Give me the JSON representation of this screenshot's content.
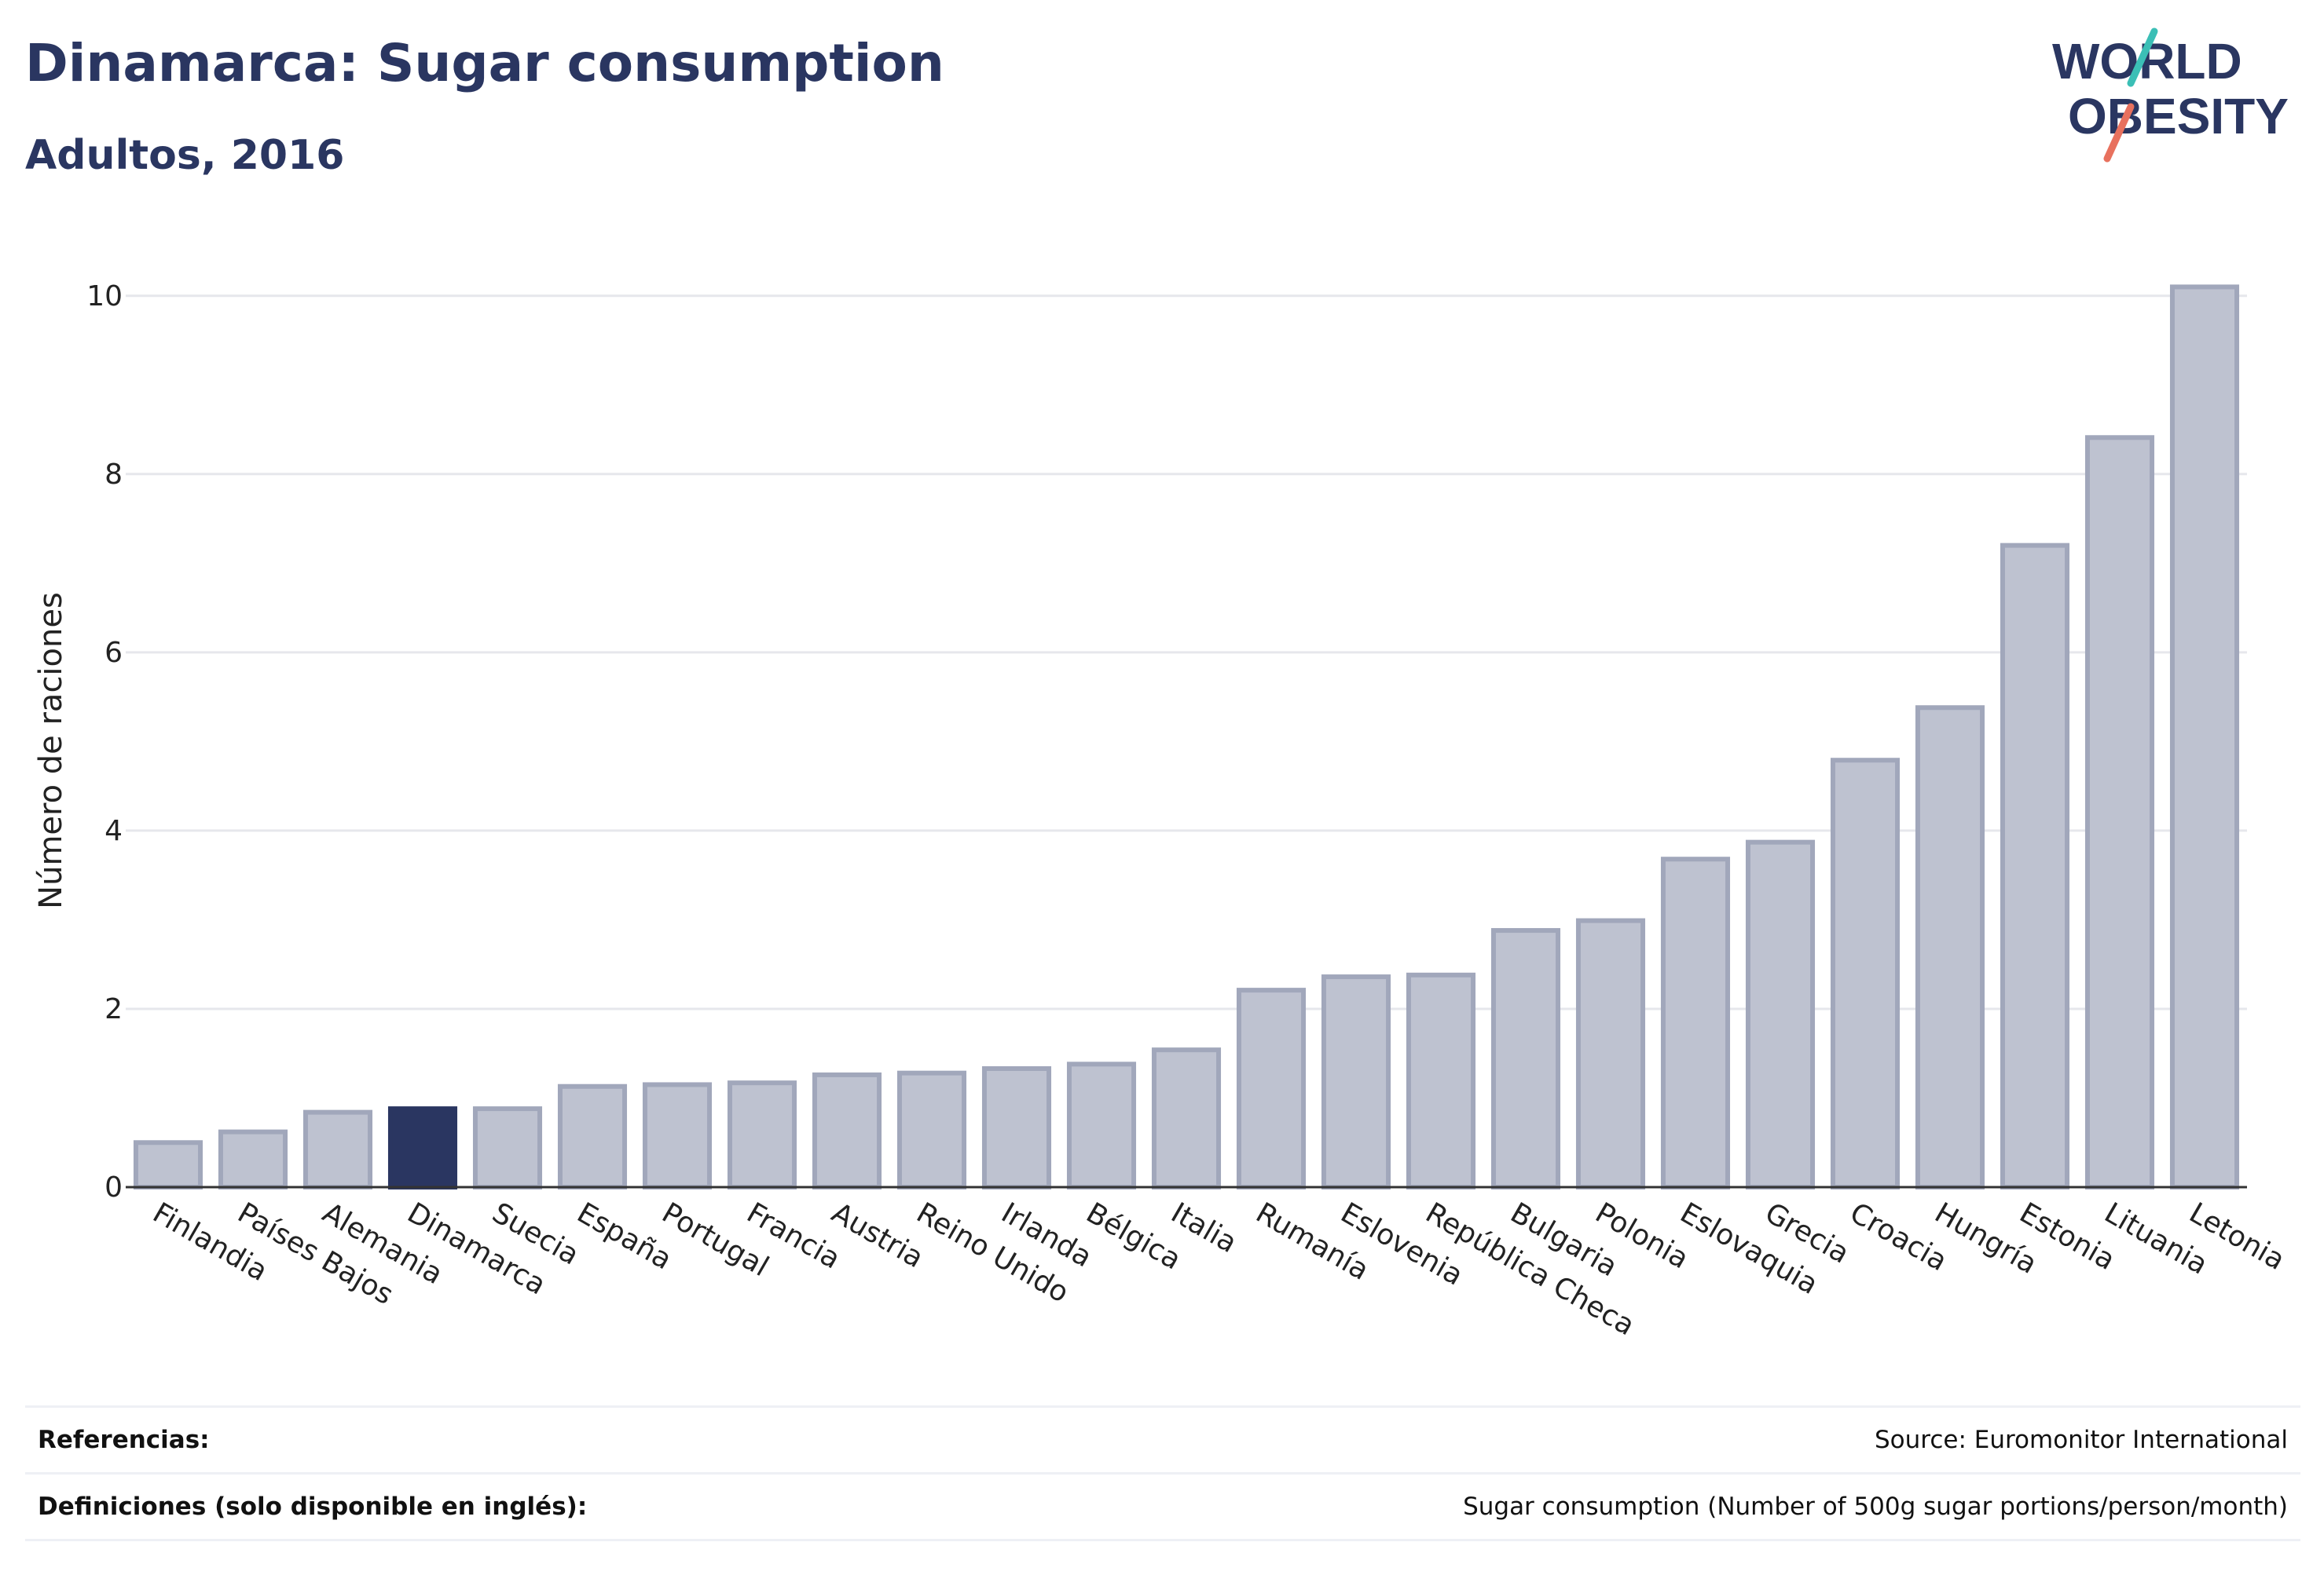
{
  "header": {
    "title": "Dinamarca: Sugar consumption",
    "subtitle": "Adultos, 2016"
  },
  "logo": {
    "line1": "WORLD",
    "line2": "OBESITY",
    "accent_colors": [
      "#3bbfb6",
      "#e8715e"
    ],
    "text_color": "#2a3661"
  },
  "chart_data": {
    "type": "bar",
    "ylabel": "Número de raciones",
    "xlabel": "",
    "ylim": [
      0,
      10.5
    ],
    "yticks": [
      0,
      2,
      4,
      6,
      8,
      10
    ],
    "grid": true,
    "categories": [
      "Finlandia",
      "Países Bajos",
      "Alemania",
      "Dinamarca",
      "Suecia",
      "España",
      "Portugal",
      "Francia",
      "Austria",
      "Reino Unido",
      "Irlanda",
      "Bélgica",
      "Italia",
      "Rumanía",
      "Eslovenia",
      "República Checa",
      "Bulgaria",
      "Polonia",
      "Eslovaquia",
      "Grecia",
      "Croacia",
      "Hungría",
      "Estonia",
      "Lituania",
      "Letonia"
    ],
    "values": [
      0.5,
      0.62,
      0.84,
      0.88,
      0.88,
      1.13,
      1.15,
      1.17,
      1.26,
      1.28,
      1.33,
      1.38,
      1.54,
      2.21,
      2.36,
      2.38,
      2.88,
      2.99,
      3.68,
      3.87,
      4.79,
      5.38,
      7.2,
      8.41,
      10.1
    ],
    "highlight": "Dinamarca",
    "colors": {
      "bar_fill": "#bec2d0",
      "bar_stroke": "#a1a7bb",
      "highlight": "#2a3661",
      "grid": "#e6e7ec",
      "axis": "#333333"
    }
  },
  "footer": {
    "references_label": "Referencias:",
    "references_value": "Source: Euromonitor International",
    "definitions_label": "Definiciones (solo disponible en inglés):",
    "definitions_value": "Sugar consumption (Number of 500g sugar portions/person/month)"
  }
}
